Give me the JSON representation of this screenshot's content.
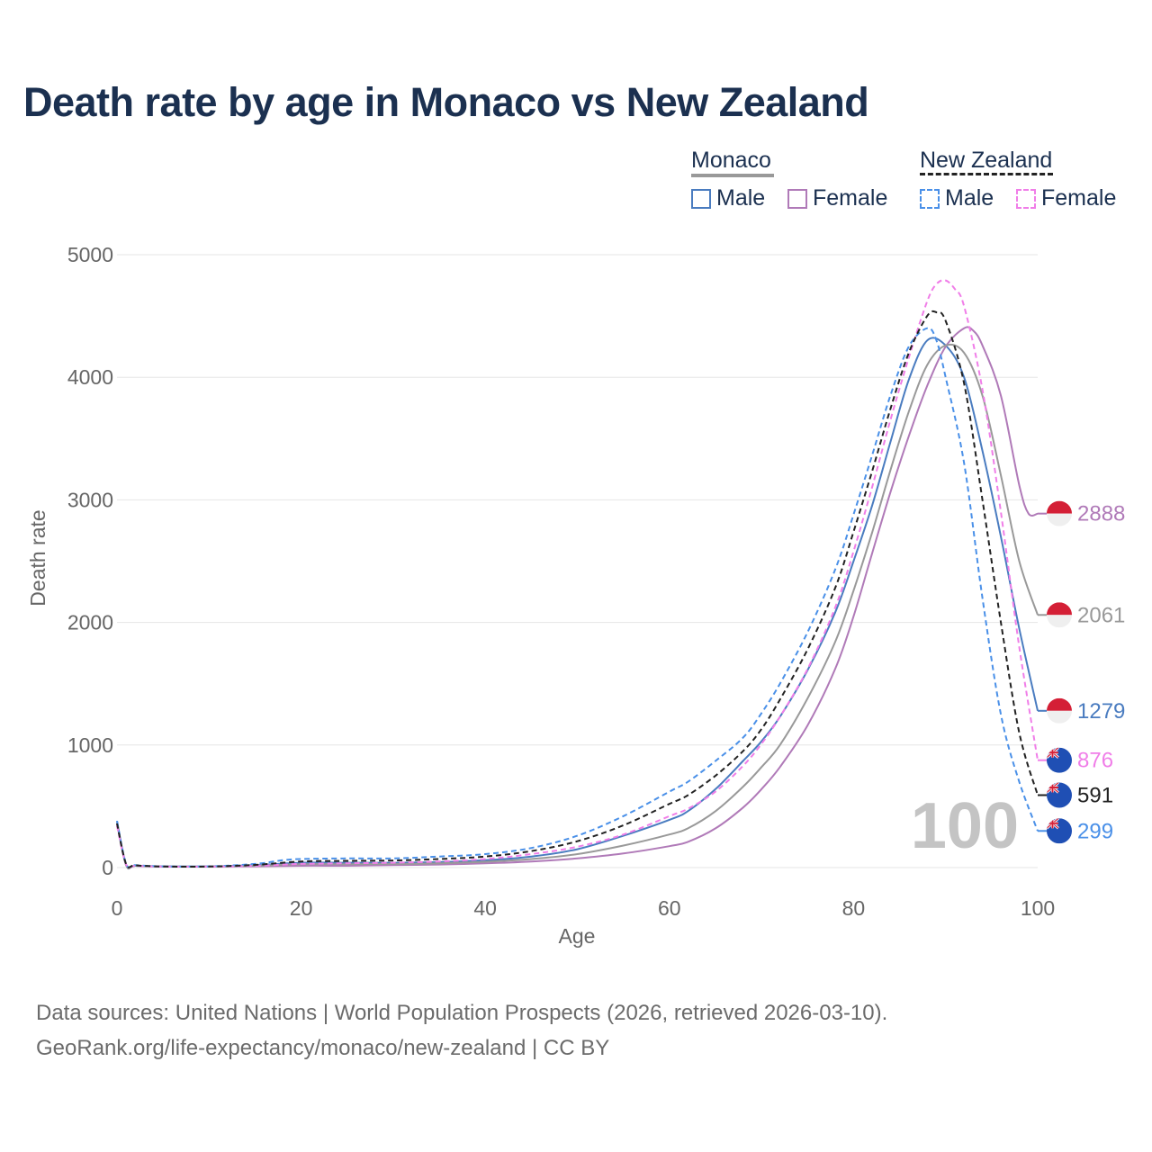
{
  "title": "Death rate by age in Monaco vs New Zealand",
  "legend": {
    "groups": [
      {
        "name": "Monaco",
        "line_color": "#999999",
        "dashed": false,
        "items": [
          {
            "label": "Male",
            "color": "#4a7cc0"
          },
          {
            "label": "Female",
            "color": "#b07ab8"
          }
        ]
      },
      {
        "name": "New Zealand",
        "line_color": "#222222",
        "dashed": true,
        "items": [
          {
            "label": "Male",
            "color": "#4a90e8"
          },
          {
            "label": "Female",
            "color": "#f07ee8"
          }
        ]
      }
    ]
  },
  "watermark": "100",
  "source": {
    "line1": "Data sources: United Nations | World Population Prospects (2026, retrieved 2026-03-10).",
    "line2": "GeoRank.org/life-expectancy/monaco/new-zealand | CC BY"
  },
  "chart_data": {
    "type": "line",
    "title": "Death rate by age in Monaco vs New Zealand",
    "xlabel": "Age",
    "ylabel": "Death rate",
    "xlim": [
      0,
      100
    ],
    "ylim": [
      0,
      5000
    ],
    "xticks": [
      0,
      20,
      40,
      60,
      80,
      100
    ],
    "yticks": [
      0,
      1000,
      2000,
      3000,
      4000,
      5000
    ],
    "grid": true,
    "series": [
      {
        "name": "Monaco Male",
        "flag": "monaco",
        "color": "#4a7cc0",
        "dashed": false,
        "end_label": "1279",
        "x": [
          0,
          1,
          2,
          5,
          10,
          15,
          20,
          25,
          30,
          35,
          40,
          45,
          50,
          55,
          60,
          62,
          65,
          68,
          70,
          72,
          75,
          78,
          80,
          82,
          84,
          86,
          88,
          90,
          92,
          94,
          96,
          98,
          100
        ],
        "y": [
          380,
          20,
          15,
          10,
          10,
          20,
          40,
          40,
          40,
          45,
          60,
          90,
          150,
          260,
          390,
          460,
          640,
          870,
          1030,
          1230,
          1610,
          2080,
          2500,
          2950,
          3470,
          3980,
          4300,
          4260,
          4000,
          3400,
          2700,
          1950,
          1279
        ]
      },
      {
        "name": "Monaco Female",
        "flag": "monaco",
        "color": "#b07ab8",
        "dashed": false,
        "end_label": "2888",
        "x": [
          0,
          1,
          2,
          5,
          10,
          15,
          20,
          25,
          30,
          35,
          40,
          45,
          50,
          55,
          60,
          62,
          65,
          68,
          70,
          72,
          75,
          78,
          80,
          82,
          84,
          86,
          88,
          90,
          92,
          93,
          94,
          96,
          98,
          99,
          100
        ],
        "y": [
          360,
          20,
          15,
          8,
          8,
          10,
          15,
          15,
          20,
          25,
          35,
          50,
          75,
          115,
          175,
          210,
          320,
          490,
          640,
          820,
          1160,
          1620,
          2050,
          2560,
          3060,
          3520,
          3930,
          4250,
          4400,
          4380,
          4260,
          3850,
          3120,
          2888,
          2888
        ]
      },
      {
        "name": "Monaco Total",
        "flag": "monaco",
        "color": "#999999",
        "dashed": false,
        "end_label": "2061",
        "x": [
          0,
          1,
          2,
          5,
          10,
          15,
          20,
          25,
          30,
          35,
          40,
          45,
          50,
          55,
          60,
          62,
          65,
          68,
          70,
          72,
          75,
          78,
          80,
          82,
          84,
          86,
          88,
          90,
          92,
          94,
          96,
          98,
          100
        ],
        "y": [
          370,
          20,
          15,
          9,
          9,
          15,
          28,
          28,
          30,
          35,
          48,
          70,
          110,
          180,
          270,
          320,
          460,
          660,
          820,
          1000,
          1380,
          1840,
          2260,
          2730,
          3240,
          3720,
          4100,
          4260,
          4200,
          3850,
          3200,
          2500,
          2061
        ]
      },
      {
        "name": "New Zealand Male",
        "flag": "new-zealand",
        "color": "#4a90e8",
        "dashed": true,
        "end_label": "299",
        "x": [
          0,
          1,
          2,
          5,
          10,
          15,
          18,
          20,
          25,
          30,
          35,
          40,
          45,
          50,
          55,
          60,
          62,
          65,
          68,
          70,
          72,
          75,
          78,
          80,
          82,
          84,
          86,
          88,
          89,
          90,
          92,
          94,
          96,
          98,
          100
        ],
        "y": [
          380,
          30,
          20,
          10,
          10,
          30,
          60,
          70,
          75,
          75,
          90,
          110,
          160,
          260,
          420,
          620,
          700,
          870,
          1060,
          1260,
          1500,
          1920,
          2430,
          2880,
          3360,
          3850,
          4250,
          4400,
          4300,
          4000,
          3300,
          2200,
          1250,
          700,
          299
        ]
      },
      {
        "name": "New Zealand Female",
        "flag": "new-zealand",
        "color": "#f07ee8",
        "dashed": true,
        "end_label": "876",
        "x": [
          0,
          1,
          2,
          5,
          10,
          15,
          20,
          25,
          30,
          35,
          40,
          45,
          50,
          55,
          60,
          62,
          65,
          68,
          70,
          72,
          75,
          78,
          80,
          82,
          84,
          86,
          88,
          89,
          90,
          91,
          92,
          94,
          96,
          98,
          100
        ],
        "y": [
          340,
          25,
          15,
          8,
          8,
          15,
          30,
          35,
          40,
          50,
          70,
          110,
          170,
          270,
          420,
          480,
          620,
          830,
          1010,
          1230,
          1620,
          2120,
          2580,
          3100,
          3650,
          4160,
          4620,
          4760,
          4790,
          4720,
          4580,
          3900,
          2900,
          1800,
          876
        ]
      },
      {
        "name": "New Zealand Total",
        "flag": "new-zealand",
        "color": "#222222",
        "dashed": true,
        "end_label": "591",
        "x": [
          0,
          1,
          2,
          5,
          10,
          15,
          20,
          25,
          30,
          35,
          40,
          45,
          50,
          55,
          60,
          62,
          65,
          68,
          70,
          72,
          75,
          78,
          80,
          82,
          84,
          86,
          88,
          89,
          90,
          92,
          94,
          96,
          98,
          100
        ],
        "y": [
          360,
          28,
          18,
          9,
          9,
          22,
          50,
          55,
          58,
          70,
          90,
          135,
          215,
          345,
          520,
          590,
          750,
          950,
          1130,
          1370,
          1780,
          2280,
          2740,
          3230,
          3740,
          4200,
          4500,
          4530,
          4460,
          3950,
          3000,
          2000,
          1100,
          591
        ]
      }
    ]
  }
}
